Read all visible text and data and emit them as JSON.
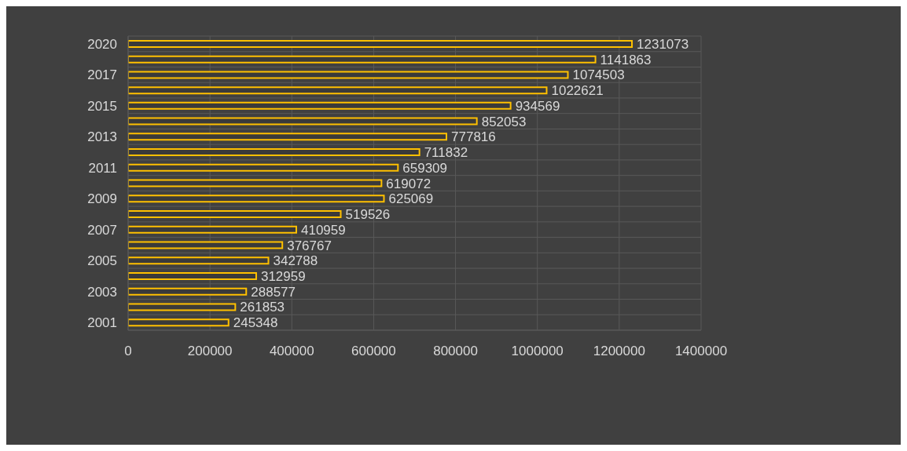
{
  "chart_data": {
    "type": "bar",
    "orientation": "horizontal",
    "categories": [
      "2020",
      null,
      "2017",
      null,
      "2015",
      null,
      "2013",
      null,
      "2011",
      null,
      "2009",
      null,
      "2007",
      null,
      "2005",
      null,
      "2003",
      null,
      "2001"
    ],
    "values": [
      1231073,
      1141863,
      1074503,
      1022621,
      934569,
      852053,
      777816,
      711832,
      659309,
      619072,
      625069,
      519526,
      410959,
      376767,
      342788,
      312959,
      288577,
      261853,
      245348
    ],
    "color": "#ffc000",
    "xlim": [
      0,
      1400000
    ],
    "xticks": [
      0,
      200000,
      400000,
      600000,
      800000,
      1000000,
      1200000,
      1400000
    ],
    "grid": true,
    "data_labels": true
  }
}
